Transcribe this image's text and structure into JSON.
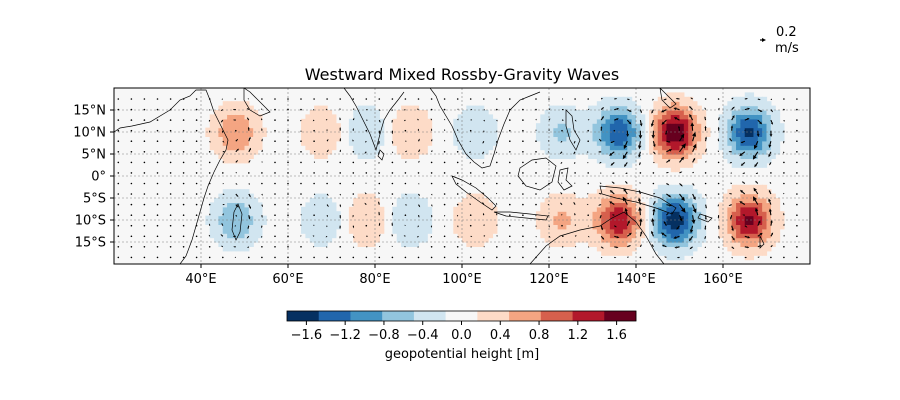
{
  "chart_data": {
    "type": "heatmap",
    "title": "Westward Mixed Rossby-Gravity Waves",
    "map": {
      "lon_range": [
        20,
        180
      ],
      "lat_range": [
        -20,
        20
      ],
      "x_ticks": [
        40,
        60,
        80,
        100,
        120,
        140,
        160
      ],
      "x_tick_labels": [
        "40°E",
        "60°E",
        "80°E",
        "100°E",
        "120°E",
        "140°E",
        "160°E"
      ],
      "y_ticks": [
        15,
        10,
        5,
        0,
        -5,
        -10,
        -15
      ],
      "y_tick_labels": [
        "15°N",
        "10°N",
        "5°N",
        "0°",
        "5°S",
        "10°S",
        "15°S"
      ],
      "coastlines": true,
      "grid": true
    },
    "field": {
      "name": "geopotential height",
      "units": "m",
      "structure": "antisymmetric about the equator",
      "extrema": [
        {
          "lon": 48,
          "lat": 10,
          "value": 0.8
        },
        {
          "lon": 48,
          "lat": -10,
          "value": -0.8
        },
        {
          "lon": 68,
          "lat": 10,
          "value": 0.45
        },
        {
          "lon": 68,
          "lat": -10,
          "value": -0.45
        },
        {
          "lon": 78,
          "lat": 10,
          "value": -0.5
        },
        {
          "lon": 78,
          "lat": -10,
          "value": 0.5
        },
        {
          "lon": 88,
          "lat": 10,
          "value": 0.5
        },
        {
          "lon": 88,
          "lat": -10,
          "value": -0.5
        },
        {
          "lon": 103,
          "lat": 10,
          "value": -0.45
        },
        {
          "lon": 103,
          "lat": -10,
          "value": 0.45
        },
        {
          "lon": 123,
          "lat": 10,
          "value": -0.55
        },
        {
          "lon": 123,
          "lat": -10,
          "value": 0.55
        },
        {
          "lon": 136,
          "lat": 10,
          "value": -1.4
        },
        {
          "lon": 136,
          "lat": -10,
          "value": 1.4
        },
        {
          "lon": 149,
          "lat": 10,
          "value": 1.75
        },
        {
          "lon": 149,
          "lat": -10,
          "value": -1.7
        },
        {
          "lon": 166,
          "lat": 10,
          "value": -1.5
        },
        {
          "lon": 166,
          "lat": -10,
          "value": 1.5
        }
      ]
    },
    "vectors": {
      "variable": "wind",
      "key_value": 0.2,
      "key_label": "0.2\nm/s",
      "key_line1": "0.2",
      "key_line2": "m/s"
    },
    "colorbar": {
      "label": "geopotential height [m]",
      "colormap": "RdBu_r",
      "range": [
        -1.8,
        1.8
      ],
      "ticks": [
        -1.6,
        -1.2,
        -0.8,
        -0.4,
        0.0,
        0.4,
        0.8,
        1.2,
        1.6
      ],
      "tick_labels": [
        "−1.6",
        "−1.2",
        "−0.8",
        "−0.4",
        "0.0",
        "0.4",
        "0.8",
        "1.2",
        "1.6"
      ],
      "colors": [
        "#053061",
        "#2166ac",
        "#4393c3",
        "#92c5de",
        "#d1e5f0",
        "#f7f7f7",
        "#fddbc7",
        "#f4a582",
        "#d6604d",
        "#b2182b",
        "#67001f"
      ]
    }
  }
}
